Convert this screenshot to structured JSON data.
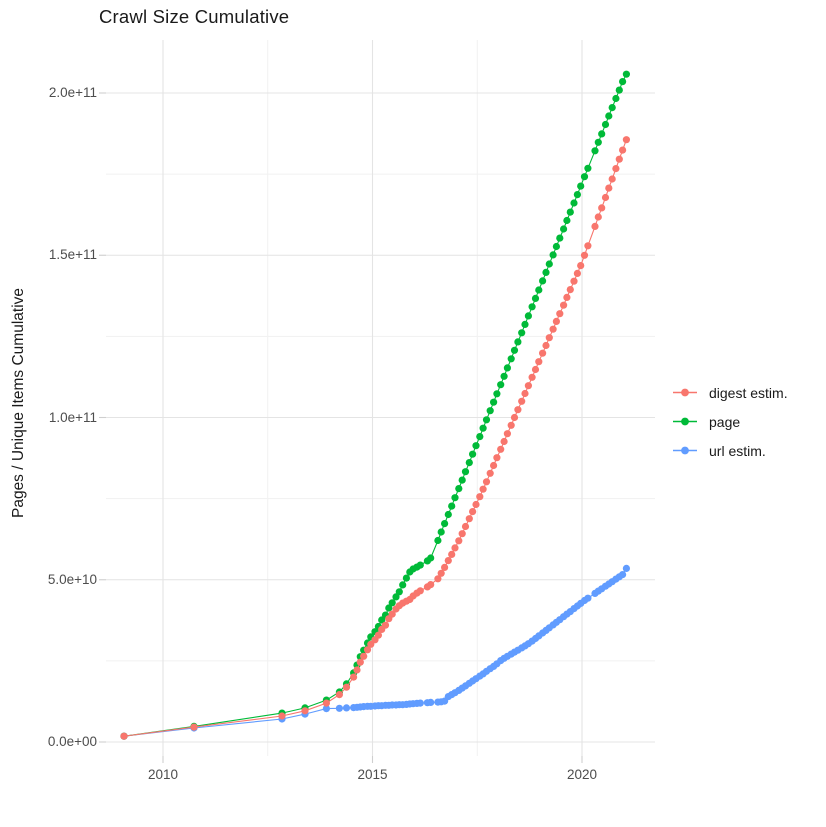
{
  "title": "Crawl Size Cumulative",
  "y_axis_title": "Pages / Unique Items Cumulative",
  "x_ticks": [
    {
      "label": "2010",
      "year": 2010
    },
    {
      "label": "2015",
      "year": 2015
    },
    {
      "label": "2020",
      "year": 2020
    }
  ],
  "y_ticks": [
    {
      "label": "0.0e+00",
      "value_e9": 0
    },
    {
      "label": "5.0e+10",
      "value_e9": 50
    },
    {
      "label": "1.0e+11",
      "value_e9": 100
    },
    {
      "label": "1.5e+11",
      "value_e9": 150
    },
    {
      "label": "2.0e+11",
      "value_e9": 200
    }
  ],
  "colors": {
    "digest": "#F8766D",
    "page": "#00BA38",
    "url": "#619CFF",
    "grid_major": "#e4e4e4",
    "grid_minor": "#f1f1f1",
    "axis_tick": "#cfcfcf",
    "tick_text": "#4d4d4d",
    "text": "#1a1a1a",
    "background": "#ffffff"
  },
  "chart_data": {
    "type": "scatter",
    "title": "Crawl Size Cumulative",
    "xlabel": "",
    "ylabel": "Pages / Unique Items Cumulative",
    "x_unit": "decimal year (one point per crawl)",
    "y_unit": "items, billions (1e9)",
    "xlim": [
      2008.6,
      2021.7
    ],
    "ylim_e9": [
      -5,
      216
    ],
    "grid": "major and minor, light gray on white",
    "legend_position": "right",
    "x_years": [
      2009.07,
      2010.74,
      2012.84,
      2013.39,
      2013.9,
      2014.21,
      2014.38,
      2014.55,
      2014.63,
      2014.71,
      2014.79,
      2014.88,
      2014.96,
      2015.06,
      2015.14,
      2015.22,
      2015.31,
      2015.39,
      2015.47,
      2015.56,
      2015.64,
      2015.72,
      2015.81,
      2015.89,
      2015.97,
      2016.06,
      2016.14,
      2016.31,
      2016.39,
      2016.56,
      2016.64,
      2016.72,
      2016.81,
      2016.89,
      2016.97,
      2017.06,
      2017.14,
      2017.22,
      2017.31,
      2017.39,
      2017.47,
      2017.56,
      2017.64,
      2017.72,
      2017.81,
      2017.89,
      2017.97,
      2018.06,
      2018.14,
      2018.22,
      2018.31,
      2018.39,
      2018.47,
      2018.56,
      2018.64,
      2018.72,
      2018.81,
      2018.89,
      2018.97,
      2019.06,
      2019.14,
      2019.22,
      2019.31,
      2019.39,
      2019.47,
      2019.56,
      2019.64,
      2019.72,
      2019.81,
      2019.89,
      2019.97,
      2020.06,
      2020.14,
      2020.31,
      2020.39,
      2020.47,
      2020.56,
      2020.64,
      2020.72,
      2020.81,
      2020.89,
      2020.97,
      2021.06
    ],
    "series": [
      {
        "name": "digest estim.",
        "color": "#F8766D",
        "values_e9": [
          1.8,
          4.6,
          8.0,
          9.6,
          12.0,
          14.6,
          16.9,
          20.0,
          22.2,
          24.6,
          26.4,
          28.4,
          30.1,
          31.5,
          32.9,
          34.7,
          36.0,
          38.0,
          39.4,
          41.0,
          42.0,
          42.8,
          43.4,
          43.9,
          45.0,
          45.9,
          46.6,
          47.8,
          48.5,
          50.3,
          52.0,
          53.8,
          55.9,
          57.8,
          59.8,
          62.0,
          64.2,
          66.4,
          68.8,
          71.0,
          73.2,
          75.6,
          77.9,
          80.2,
          82.8,
          85.2,
          87.6,
          90.2,
          92.6,
          95.0,
          97.6,
          100.0,
          102.4,
          105.0,
          107.4,
          109.8,
          112.4,
          114.8,
          117.2,
          119.8,
          122.2,
          124.6,
          127.2,
          129.6,
          132.0,
          134.6,
          137.0,
          139.4,
          142.0,
          144.4,
          146.8,
          150.0,
          152.9,
          158.9,
          161.8,
          164.6,
          167.8,
          170.7,
          173.5,
          176.7,
          179.6,
          182.4,
          185.6
        ]
      },
      {
        "name": "page",
        "color": "#00BA38",
        "values_e9": [
          1.8,
          4.8,
          8.9,
          10.5,
          12.9,
          15.4,
          17.9,
          21.3,
          23.7,
          26.3,
          28.3,
          30.5,
          32.4,
          34.0,
          35.6,
          37.6,
          39.1,
          41.3,
          42.9,
          44.7,
          46.3,
          48.4,
          50.5,
          52.4,
          53.3,
          53.9,
          54.5,
          55.8,
          56.7,
          62.1,
          64.7,
          67.3,
          70.1,
          72.7,
          75.3,
          78.1,
          80.7,
          83.3,
          86.1,
          88.7,
          91.3,
          94.1,
          96.7,
          99.3,
          102.1,
          104.7,
          107.3,
          110.1,
          112.7,
          115.3,
          118.1,
          120.7,
          123.3,
          126.1,
          128.7,
          131.3,
          134.1,
          136.7,
          139.3,
          142.1,
          144.7,
          147.3,
          150.1,
          152.7,
          155.3,
          158.1,
          160.7,
          163.3,
          166.1,
          168.7,
          171.3,
          174.2,
          176.8,
          182.2,
          184.8,
          187.4,
          190.3,
          192.9,
          195.5,
          198.3,
          200.9,
          203.5,
          205.8
        ]
      },
      {
        "name": "url estim.",
        "color": "#619CFF",
        "values_e9": [
          1.8,
          4.3,
          7.1,
          8.6,
          10.3,
          10.4,
          10.5,
          10.6,
          10.7,
          10.8,
          10.9,
          11.0,
          11.0,
          11.1,
          11.2,
          11.2,
          11.3,
          11.3,
          11.4,
          11.4,
          11.5,
          11.5,
          11.6,
          11.7,
          11.8,
          11.9,
          12.0,
          12.1,
          12.2,
          12.3,
          12.4,
          12.6,
          14.0,
          14.6,
          15.2,
          15.9,
          16.6,
          17.3,
          18.1,
          18.8,
          19.5,
          20.3,
          21.0,
          21.8,
          22.6,
          23.3,
          24.1,
          25.1,
          25.8,
          26.4,
          27.1,
          27.7,
          28.3,
          29.0,
          29.6,
          30.3,
          31.1,
          31.9,
          32.7,
          33.6,
          34.4,
          35.2,
          36.1,
          36.9,
          37.7,
          38.6,
          39.4,
          40.2,
          41.1,
          41.9,
          42.7,
          43.6,
          44.3,
          45.8,
          46.5,
          47.2,
          48.0,
          48.7,
          49.4,
          50.2,
          50.9,
          51.6,
          53.5
        ]
      }
    ]
  }
}
